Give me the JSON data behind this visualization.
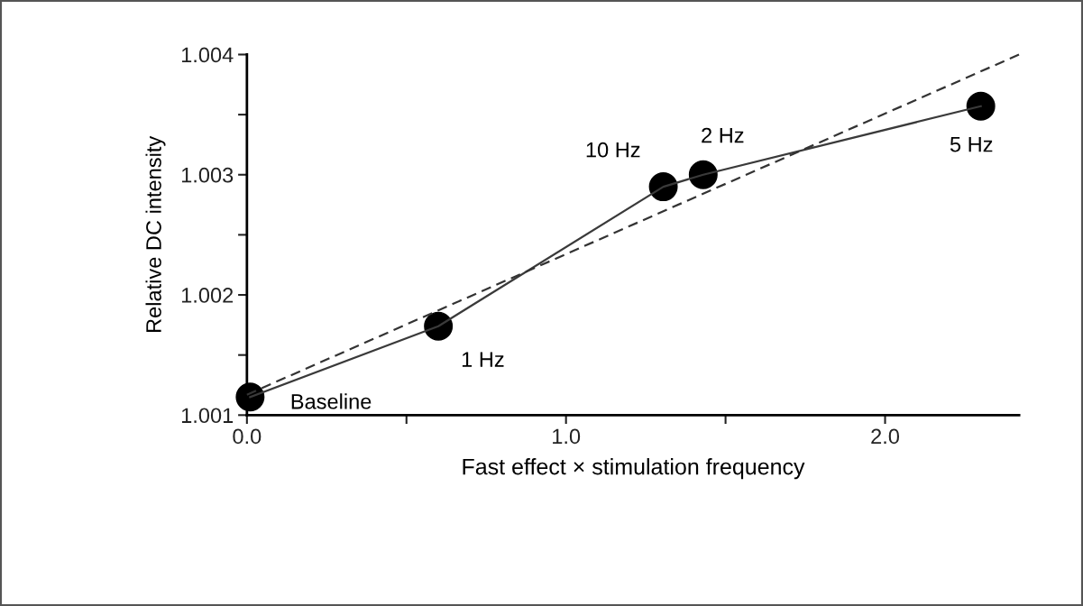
{
  "chart_data": {
    "type": "line",
    "xlabel": "Fast effect × stimulation frequency",
    "ylabel": "Relative DC intensity",
    "xlim": [
      0,
      2.42
    ],
    "ylim": [
      1.001,
      1.004
    ],
    "xticks": [
      {
        "value": 0,
        "label": "0.0"
      },
      {
        "value": 0.5,
        "label": null
      },
      {
        "value": 1,
        "label": "1.0"
      },
      {
        "value": 1.5,
        "label": null
      },
      {
        "value": 2,
        "label": "2.0"
      }
    ],
    "yticks": [
      1.001,
      {
        "value": 1.0015,
        "label": null
      },
      1.002,
      {
        "value": 1.0025,
        "label": null
      },
      1.003,
      {
        "value": 1.0035,
        "label": null
      },
      1.004
    ],
    "grid": false,
    "legend": false,
    "series": [
      {
        "type": "scatter",
        "color": "#000000",
        "marker": "circle",
        "x": [
          0.01,
          0.6,
          1.305,
          1.43,
          2.3
        ],
        "values": [
          1.00115,
          1.00174,
          1.0029,
          1.003,
          1.00357
        ]
      },
      {
        "color": "#3a3a3a",
        "marker": "none",
        "line_style": "solid",
        "x": [
          0.01,
          0.6,
          1.305,
          1.43,
          2.3
        ],
        "values": [
          1.00115,
          1.00174,
          1.0029,
          1.003,
          1.00357
        ]
      },
      {
        "type": "line",
        "color": "#333333",
        "marker": "none",
        "line_style": "dashed",
        "x": [
          0,
          2.42
        ],
        "values": [
          1.00117,
          1.004
        ]
      }
    ],
    "annotations": [
      {
        "text": "Baseline",
        "x": 0.01,
        "y": 1.00115
      },
      {
        "text": "1 Hz",
        "x": 0.6,
        "y": 1.00174
      },
      {
        "text": "10 Hz",
        "x": 1.305,
        "y": 1.0029
      },
      {
        "text": "2 Hz",
        "x": 1.43,
        "y": 1.003
      },
      {
        "text": "5 Hz",
        "x": 2.3,
        "y": 1.00357
      }
    ]
  }
}
